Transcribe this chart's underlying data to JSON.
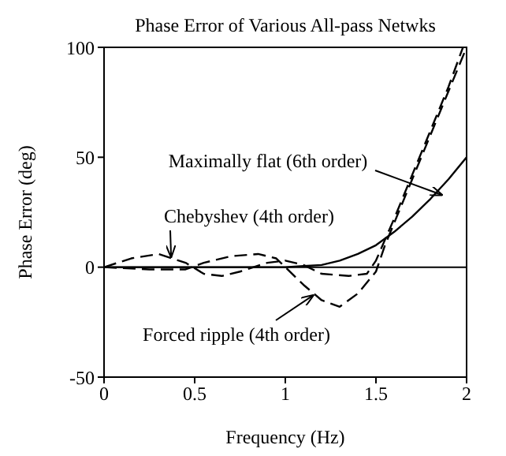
{
  "chart_data": {
    "type": "line",
    "title": "Phase Error of Various All-pass Netwks",
    "xlabel": "Frequency (Hz)",
    "ylabel": "Phase Error (deg)",
    "xlim": [
      0,
      2
    ],
    "xticks": [
      0,
      0.5,
      1,
      1.5,
      2
    ],
    "ylim": [
      -50,
      100
    ],
    "yticks": [
      -50,
      0,
      50,
      100
    ],
    "marker": "none",
    "series": [
      {
        "color": "#000000",
        "line_style": "solid",
        "x": [
          0,
          0.5,
          1.0,
          1.1,
          1.2,
          1.3,
          1.4,
          1.5,
          1.6,
          1.7,
          1.8,
          1.9,
          2.0
        ],
        "values": [
          0,
          0,
          0,
          0.5,
          1,
          3,
          6,
          10,
          16,
          23,
          31,
          40,
          50
        ]
      },
      {
        "color": "#000000",
        "line_style": "dashed",
        "x": [
          0,
          0.15,
          0.3,
          0.45,
          0.55,
          0.65,
          0.75,
          0.9,
          1.0,
          1.1,
          1.2,
          1.35,
          1.45,
          1.5,
          1.6,
          1.7,
          1.8,
          1.9,
          1.98
        ],
        "values": [
          0,
          4,
          6,
          2,
          -3,
          -4,
          -2,
          2,
          3,
          1,
          -3,
          -4,
          -3,
          3,
          22,
          42,
          62,
          82,
          100
        ]
      },
      {
        "color": "#000000",
        "line_style": "dashed",
        "x": [
          0,
          0.25,
          0.45,
          0.55,
          0.7,
          0.85,
          0.95,
          1.0,
          1.1,
          1.2,
          1.3,
          1.4,
          1.5,
          1.55,
          1.6,
          1.7,
          1.8,
          1.9,
          2.0
        ],
        "values": [
          0,
          -1,
          -1,
          2,
          5,
          6,
          4,
          0,
          -8,
          -15,
          -18,
          -12,
          -2,
          10,
          20,
          40,
          60,
          80,
          100
        ]
      }
    ],
    "ref_lines": [
      {
        "axis": "y",
        "value": 0,
        "color": "#000000"
      }
    ],
    "annotations": [
      {
        "text": "Maximally flat (6th order)",
        "x": 1.86,
        "y": 33
      },
      {
        "text": "Chebyshev (4th order)",
        "x": 0.37,
        "y": 5
      },
      {
        "text": "Forced ripple (4th order)",
        "x": 1.15,
        "y": -13
      }
    ]
  }
}
